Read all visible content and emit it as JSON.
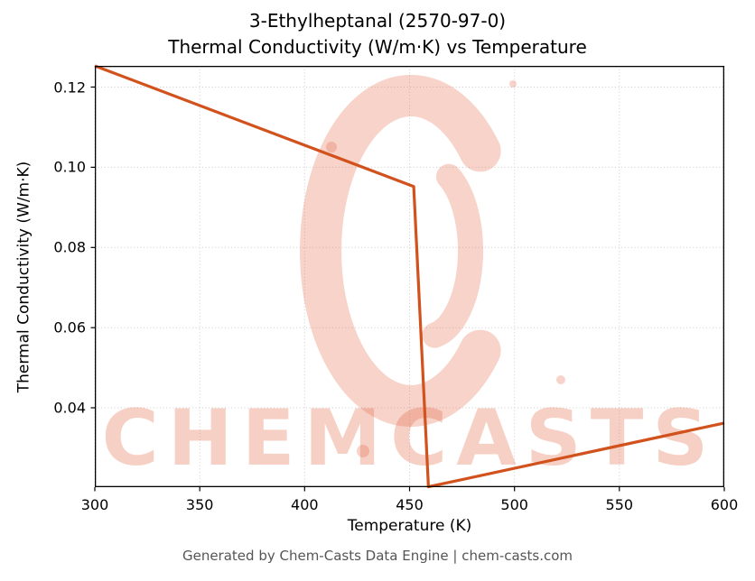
{
  "footer": "Generated by Chem-Casts Data Engine | chem-casts.com",
  "watermark": {
    "text": "CHEMCASTS",
    "color": "#e4623f",
    "opacity": 0.28
  },
  "chart_data": {
    "type": "line",
    "title": "3-Ethylheptanal (2570-97-0)",
    "subtitle": "Thermal Conductivity (W/m·K) vs Temperature",
    "xlabel": "Temperature (K)",
    "ylabel": "Thermal Conductivity (W/m·K)",
    "xlim": [
      300,
      600
    ],
    "ylim": [
      0.0202,
      0.1253
    ],
    "xticks": [
      300,
      350,
      400,
      450,
      500,
      550,
      600
    ],
    "yticks": [
      0.04,
      0.06,
      0.08,
      0.1,
      0.12
    ],
    "grid": true,
    "legend": "none",
    "line_color": "#d2521e",
    "series": [
      {
        "name": "thermal_conductivity",
        "x": [
          300,
          452,
          459,
          600
        ],
        "y": [
          0.1253,
          0.0952,
          0.0203,
          0.0362
        ]
      }
    ]
  }
}
